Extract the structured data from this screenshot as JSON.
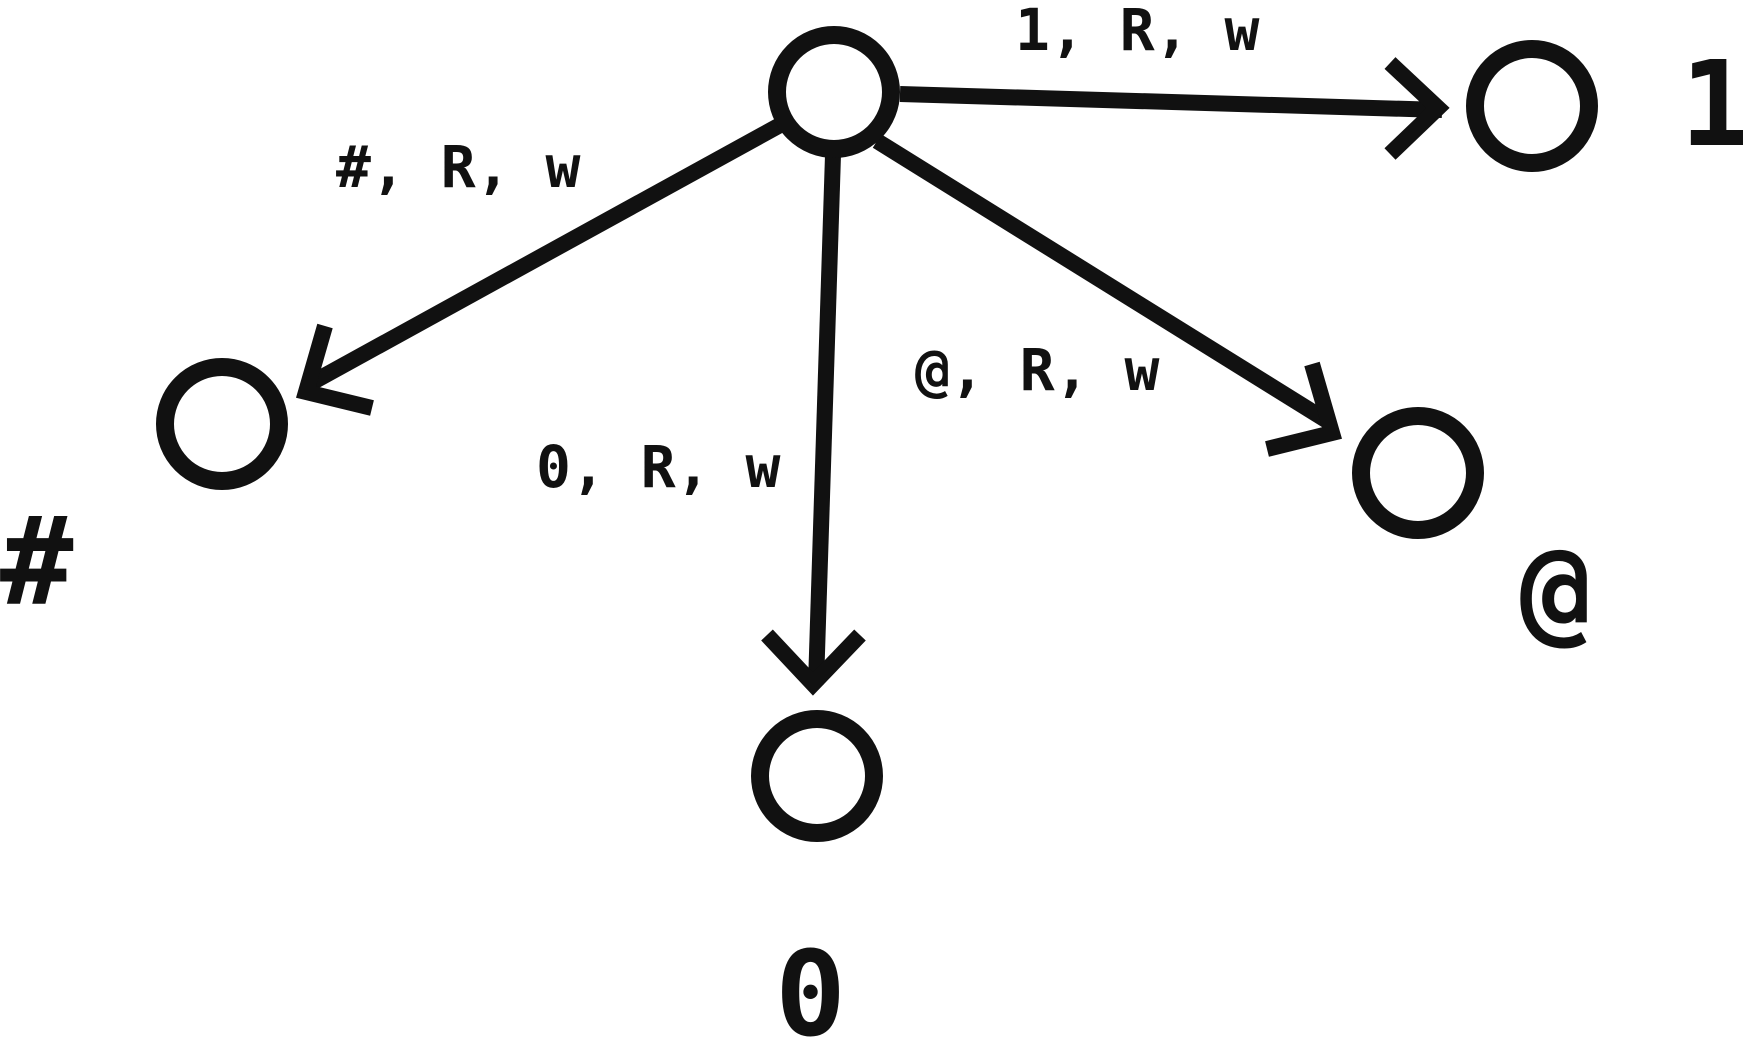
{
  "diagram": {
    "stroke_color": "#111111",
    "background": "#ffffff",
    "states": [
      {
        "id": "start",
        "label": ""
      },
      {
        "id": "s1",
        "label": "1"
      },
      {
        "id": "s_hash",
        "label": "#"
      },
      {
        "id": "s0",
        "label": "0"
      },
      {
        "id": "s_at",
        "label": "@"
      }
    ],
    "transitions": [
      {
        "from": "start",
        "to": "s1",
        "label": "1, R, w"
      },
      {
        "from": "start",
        "to": "s_hash",
        "label": "#, R, w"
      },
      {
        "from": "start",
        "to": "s0",
        "label": "0, R, w"
      },
      {
        "from": "start",
        "to": "s_at",
        "label": "@, R, w"
      }
    ]
  }
}
